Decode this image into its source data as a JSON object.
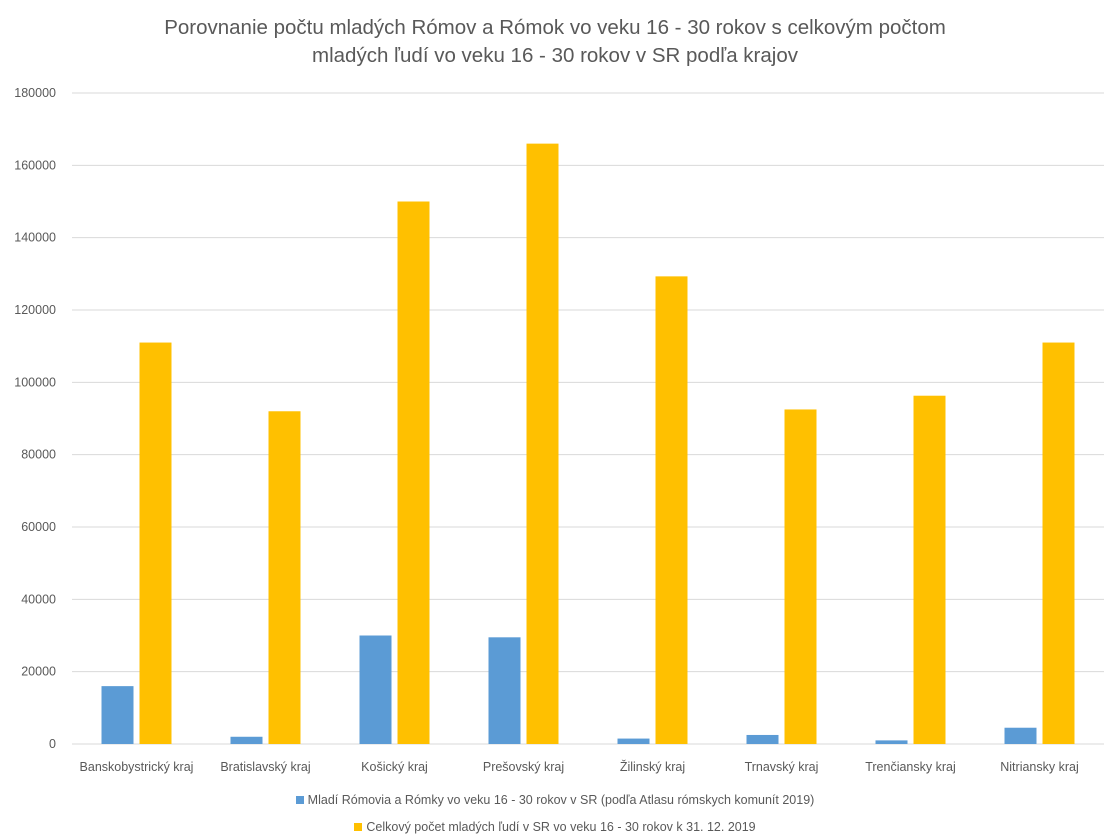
{
  "chart_data": {
    "type": "bar",
    "title_lines": [
      "Porovnanie počtu mladých Rómov a Rómok vo veku 16 - 30 rokov s celkovým počtom",
      "mladých ľudí vo veku 16 - 30 rokov v SR podľa krajov"
    ],
    "xlabel": "",
    "ylabel": "",
    "ylim": [
      0,
      180000
    ],
    "yticks": [
      0,
      20000,
      40000,
      60000,
      80000,
      100000,
      120000,
      140000,
      160000,
      180000
    ],
    "grid": true,
    "legend_position": "bottom",
    "categories": [
      "Banskobystrický kraj",
      "Bratislavský kraj",
      "Košický kraj",
      "Prešovský kraj",
      "Žilinský kraj",
      "Trnavský kraj",
      "Trenčiansky kraj",
      "Nitriansky kraj"
    ],
    "series": [
      {
        "name": "Mladí Rómovia a Rómky vo veku 16 - 30 rokov v SR (podľa Atlasu rómskych komunít 2019)",
        "color": "#5B9BD5",
        "values": [
          16000,
          2000,
          30000,
          29500,
          1500,
          2500,
          1000,
          4500
        ]
      },
      {
        "name": "Celkový počet mladých ľudí v SR vo veku 16 - 30 rokov k 31. 12. 2019",
        "color": "#FFC000",
        "values": [
          111000,
          92000,
          150000,
          166000,
          129300,
          92500,
          96300,
          111000
        ]
      }
    ]
  }
}
